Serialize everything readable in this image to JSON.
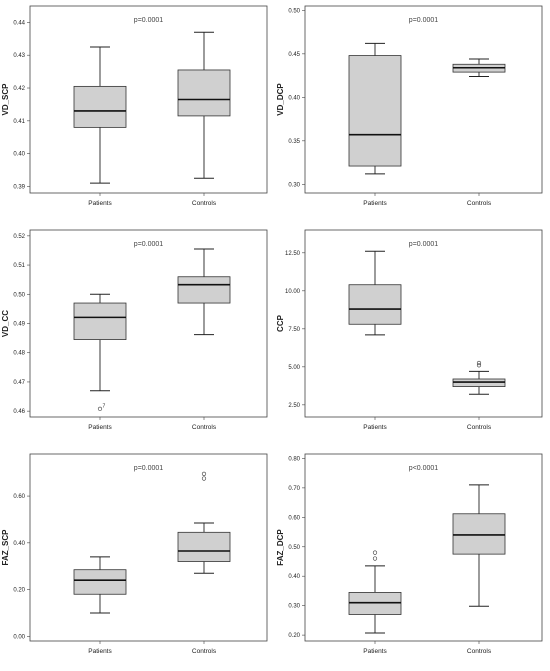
{
  "chart_data": [
    {
      "type": "box",
      "title": "",
      "annotation": "p=0.0001",
      "ylabel": "VD_SCP",
      "categories": [
        "Patients",
        "Controls"
      ],
      "ylim": [
        0.388,
        0.445
      ],
      "yticks": [
        "0.39",
        "0.40",
        "0.41",
        "0.42",
        "0.43",
        "0.44"
      ],
      "yticks_values": [
        0.39,
        0.4,
        0.41,
        0.42,
        0.43,
        0.44
      ],
      "boxes": [
        {
          "category": "Patients",
          "min": 0.391,
          "q1": 0.408,
          "median": 0.413,
          "q3": 0.4205,
          "max": 0.4325
        },
        {
          "category": "Controls",
          "min": 0.3925,
          "q1": 0.4115,
          "median": 0.4165,
          "q3": 0.4255,
          "max": 0.437
        }
      ],
      "outliers": []
    },
    {
      "type": "box",
      "title": "",
      "annotation": "p=0.0001",
      "ylabel": "VD_DCP",
      "categories": [
        "Patients",
        "Controls"
      ],
      "ylim": [
        0.29,
        0.505
      ],
      "yticks": [
        "0.30",
        "0.35",
        "0.40",
        "0.45",
        "0.50"
      ],
      "yticks_values": [
        0.3,
        0.35,
        0.4,
        0.45,
        0.5
      ],
      "boxes": [
        {
          "category": "Patients",
          "min": 0.312,
          "q1": 0.321,
          "median": 0.357,
          "q3": 0.448,
          "max": 0.462
        },
        {
          "category": "Controls",
          "min": 0.424,
          "q1": 0.429,
          "median": 0.434,
          "q3": 0.438,
          "max": 0.444
        }
      ],
      "outliers": []
    },
    {
      "type": "box",
      "title": "",
      "annotation": "p=0.0001",
      "ylabel": "VD_CC",
      "categories": [
        "Patients",
        "Controls"
      ],
      "ylim": [
        0.458,
        0.522
      ],
      "yticks": [
        "0.46",
        "0.47",
        "0.48",
        "0.49",
        "0.50",
        "0.51",
        "0.52"
      ],
      "yticks_values": [
        0.46,
        0.47,
        0.48,
        0.49,
        0.5,
        0.51,
        0.52
      ],
      "boxes": [
        {
          "category": "Patients",
          "min": 0.467,
          "q1": 0.4845,
          "median": 0.4921,
          "q3": 0.497,
          "max": 0.5
        },
        {
          "category": "Controls",
          "min": 0.4862,
          "q1": 0.497,
          "median": 0.5033,
          "q3": 0.506,
          "max": 0.5155
        }
      ],
      "outliers": [
        {
          "category": "Patients",
          "value": 0.4608,
          "label": "7"
        }
      ]
    },
    {
      "type": "box",
      "title": "",
      "annotation": "p=0.0001",
      "ylabel": "CCP",
      "categories": [
        "Patients",
        "Controls"
      ],
      "ylim": [
        1.7,
        14.0
      ],
      "yticks": [
        "2.50",
        "5.00",
        "7.50",
        "10.00",
        "12.50"
      ],
      "yticks_values": [
        2.5,
        5.0,
        7.5,
        10.0,
        12.5
      ],
      "boxes": [
        {
          "category": "Patients",
          "min": 7.1,
          "q1": 7.8,
          "median": 8.8,
          "q3": 10.4,
          "max": 12.6
        },
        {
          "category": "Controls",
          "min": 3.2,
          "q1": 3.7,
          "median": 4.0,
          "q3": 4.2,
          "max": 4.7
        }
      ],
      "outliers": [
        {
          "category": "Controls",
          "value": 5.1,
          "label": ""
        },
        {
          "category": "Controls",
          "value": 5.25,
          "label": ""
        }
      ]
    },
    {
      "type": "box",
      "title": "",
      "annotation": "p=0.0001",
      "ylabel": "FAZ_SCP",
      "categories": [
        "Patients",
        "Controls"
      ],
      "ylim": [
        -0.02,
        0.78
      ],
      "yticks": [
        "0.00",
        "0.20",
        "0.40",
        "0.60"
      ],
      "yticks_values": [
        0.0,
        0.2,
        0.4,
        0.6
      ],
      "boxes": [
        {
          "category": "Patients",
          "min": 0.1,
          "q1": 0.18,
          "median": 0.24,
          "q3": 0.285,
          "max": 0.34
        },
        {
          "category": "Controls",
          "min": 0.27,
          "q1": 0.32,
          "median": 0.365,
          "q3": 0.445,
          "max": 0.485
        }
      ],
      "outliers": [
        {
          "category": "Controls",
          "value": 0.675,
          "label": ""
        },
        {
          "category": "Controls",
          "value": 0.695,
          "label": ""
        }
      ]
    },
    {
      "type": "box",
      "title": "",
      "annotation": "p<0.0001",
      "ylabel": "FAZ_DCP",
      "categories": [
        "Patients",
        "Controls"
      ],
      "ylim": [
        0.18,
        0.815
      ],
      "yticks": [
        "0.20",
        "0.30",
        "0.40",
        "0.50",
        "0.60",
        "0.70",
        "0.80"
      ],
      "yticks_values": [
        0.2,
        0.3,
        0.4,
        0.5,
        0.6,
        0.7,
        0.8
      ],
      "boxes": [
        {
          "category": "Patients",
          "min": 0.207,
          "q1": 0.27,
          "median": 0.31,
          "q3": 0.345,
          "max": 0.435
        },
        {
          "category": "Controls",
          "min": 0.298,
          "q1": 0.475,
          "median": 0.54,
          "q3": 0.612,
          "max": 0.71
        }
      ],
      "outliers": [
        {
          "category": "Patients",
          "value": 0.46,
          "label": ""
        },
        {
          "category": "Patients",
          "value": 0.48,
          "label": ""
        }
      ]
    }
  ]
}
